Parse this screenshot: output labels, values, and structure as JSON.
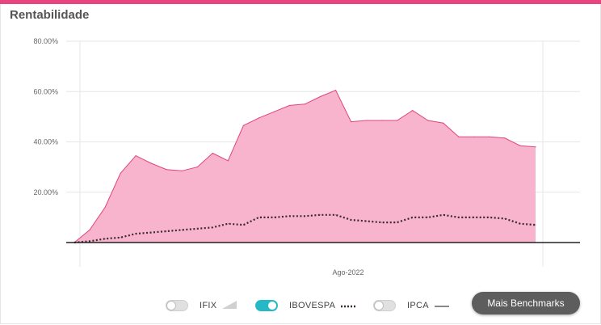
{
  "card": {
    "title": "Rentabilidade",
    "accent_color": "#e8457f"
  },
  "chart_data": {
    "type": "area",
    "title": "",
    "xlabel": "",
    "ylabel": "",
    "x_tick_labels": [
      "Ago-2022"
    ],
    "y_tick_labels": [
      "80.00%",
      "60.00%",
      "40.00%",
      "20.00%"
    ],
    "y_ticks": [
      80,
      60,
      40,
      20
    ],
    "ylim": [
      0,
      80
    ],
    "grid": true,
    "legend_position": "bottom",
    "series": [
      {
        "kind": "area",
        "color": "#f8b4cc",
        "line_color": "#e0457c",
        "values": [
          0,
          5,
          14,
          27.5,
          34.5,
          31.5,
          29,
          28.5,
          30,
          35.5,
          32.5,
          46.5,
          49.5,
          52,
          54.5,
          55,
          58,
          60.5,
          48,
          48.5,
          48.5,
          48.5,
          52.5,
          48.5,
          47.5,
          42,
          42,
          42,
          41.5,
          38.5,
          38
        ]
      },
      {
        "name": "IBOVESPA",
        "kind": "dotted",
        "color": "#3a2a2a",
        "values": [
          0,
          0.5,
          1.5,
          2,
          3.5,
          4,
          4.5,
          5,
          5.5,
          6,
          7.5,
          7,
          10,
          10,
          10.5,
          10.5,
          11,
          11,
          9,
          8.5,
          8,
          8,
          10,
          10,
          11,
          10,
          10,
          10,
          9.5,
          7.5,
          7
        ]
      }
    ]
  },
  "legend": {
    "items": [
      {
        "label": "IFIX",
        "enabled": false,
        "symbol": "area-wedge"
      },
      {
        "label": "IBOVESPA",
        "enabled": true,
        "symbol": "dotted-line"
      },
      {
        "label": "IPCA",
        "enabled": false,
        "symbol": "solid-line"
      }
    ]
  },
  "buttons": {
    "more_benchmarks": "Mais Benchmarks"
  }
}
